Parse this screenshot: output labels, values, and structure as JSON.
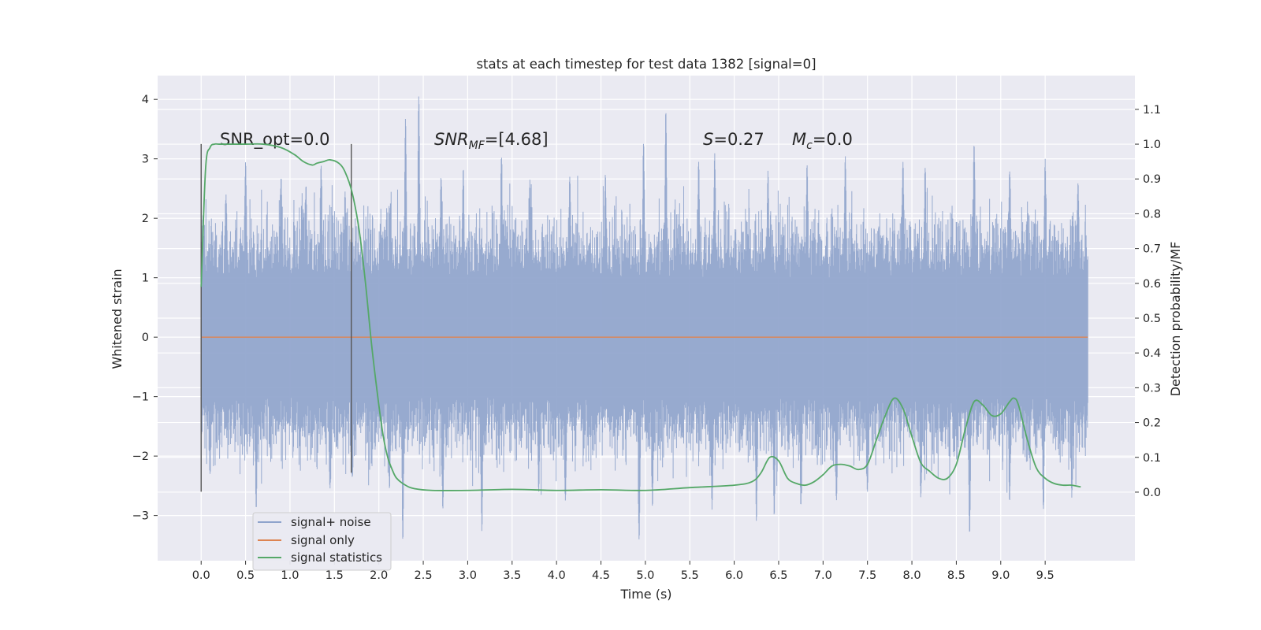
{
  "chart_data": {
    "type": "line",
    "title": "stats at each timestep for test data 1382 [signal=0]",
    "xlabel": "Time (s)",
    "ylabel_left": "Whitened strain",
    "ylabel_right": "Detection probability/MF",
    "xlim": [
      -0.49,
      10.51
    ],
    "ylim_left": [
      -3.76,
      4.4
    ],
    "ylim_right": [
      -0.197,
      1.197
    ],
    "x_ticks": [
      "0.0",
      "0.5",
      "1.0",
      "1.5",
      "2.0",
      "2.5",
      "3.0",
      "3.5",
      "4.0",
      "4.5",
      "5.0",
      "5.5",
      "6.0",
      "6.5",
      "7.0",
      "7.5",
      "8.0",
      "8.5",
      "9.0",
      "9.5"
    ],
    "y_left_ticks": [
      "−3",
      "−2",
      "−1",
      "0",
      "1",
      "2",
      "3",
      "4"
    ],
    "y_right_ticks": [
      "0.0",
      "0.1",
      "0.2",
      "0.3",
      "0.4",
      "0.5",
      "0.6",
      "0.7",
      "0.8",
      "0.9",
      "1.0",
      "1.1"
    ],
    "grid": true,
    "legend_position": "lower-left",
    "annotations": {
      "snr_opt": "SNR_opt=0.0",
      "snr_mf_base": "SNR",
      "snr_mf_sub": "MF",
      "snr_mf_value": "=[4.68]",
      "s_base": "S",
      "s_value": "=0.27",
      "mc_base": "M",
      "mc_sub": "c",
      "mc_value": "=0.0"
    },
    "vertical_markers": [
      {
        "x": 0.0,
        "y_range": [
          -2.6,
          3.25
        ]
      },
      {
        "x": 1.69,
        "y_range": [
          -2.28,
          3.25
        ]
      }
    ],
    "series": [
      {
        "name": "signal+ noise",
        "axis": "left",
        "color": "#8fa4cc",
        "kind": "noise",
        "x_range": [
          0.0,
          9.98
        ],
        "core_band": [
          -1.0,
          1.0
        ],
        "positive_peaks": [
          [
            0.02,
            2.05
          ],
          [
            0.28,
            2.4
          ],
          [
            0.5,
            2.95
          ],
          [
            0.9,
            2.7
          ],
          [
            1.18,
            2.55
          ],
          [
            1.35,
            2.9
          ],
          [
            1.62,
            2.45
          ],
          [
            2.13,
            2.25
          ],
          [
            2.3,
            3.68
          ],
          [
            2.45,
            4.07
          ],
          [
            2.7,
            2.7
          ],
          [
            2.95,
            2.85
          ],
          [
            3.38,
            3.05
          ],
          [
            3.7,
            2.65
          ],
          [
            4.15,
            2.7
          ],
          [
            4.55,
            2.75
          ],
          [
            4.98,
            3.28
          ],
          [
            5.23,
            3.82
          ],
          [
            5.6,
            2.95
          ],
          [
            5.78,
            3.1
          ],
          [
            6.38,
            2.8
          ],
          [
            6.82,
            2.9
          ],
          [
            7.25,
            3.05
          ],
          [
            7.9,
            2.95
          ],
          [
            8.15,
            2.85
          ],
          [
            8.7,
            3.25
          ],
          [
            9.1,
            2.8
          ],
          [
            9.5,
            3.0
          ],
          [
            9.87,
            2.6
          ]
        ],
        "negative_peaks": [
          [
            0.1,
            -2.3
          ],
          [
            0.62,
            -2.9
          ],
          [
            1.45,
            -2.55
          ],
          [
            1.7,
            -2.35
          ],
          [
            2.12,
            -2.55
          ],
          [
            2.27,
            -3.42
          ],
          [
            2.72,
            -2.9
          ],
          [
            3.16,
            -3.27
          ],
          [
            3.8,
            -2.6
          ],
          [
            4.1,
            -2.75
          ],
          [
            4.93,
            -3.42
          ],
          [
            5.08,
            -2.85
          ],
          [
            5.75,
            -2.9
          ],
          [
            6.25,
            -3.1
          ],
          [
            6.45,
            -3.0
          ],
          [
            6.75,
            -2.85
          ],
          [
            7.15,
            -2.75
          ],
          [
            7.5,
            -2.6
          ],
          [
            8.1,
            -2.7
          ],
          [
            8.65,
            -3.32
          ],
          [
            9.1,
            -2.75
          ],
          [
            9.48,
            -2.9
          ],
          [
            9.8,
            -2.7
          ]
        ]
      },
      {
        "name": "signal only",
        "axis": "left",
        "color": "#dd8452",
        "x": [
          0.0,
          9.98
        ],
        "y": [
          0.0,
          0.0
        ]
      },
      {
        "name": "signal statistics",
        "axis": "right",
        "color": "#55a868",
        "x": [
          0.0,
          0.05,
          0.1,
          0.15,
          0.2,
          0.3,
          0.5,
          0.7,
          0.9,
          1.05,
          1.15,
          1.25,
          1.3,
          1.38,
          1.45,
          1.55,
          1.62,
          1.7,
          1.78,
          1.85,
          1.92,
          2.0,
          2.05,
          2.1,
          2.15,
          2.2,
          2.3,
          2.4,
          2.6,
          3.0,
          3.5,
          4.0,
          4.5,
          5.0,
          5.5,
          6.0,
          6.2,
          6.3,
          6.4,
          6.5,
          6.6,
          6.7,
          6.8,
          6.9,
          7.0,
          7.1,
          7.2,
          7.3,
          7.4,
          7.5,
          7.6,
          7.7,
          7.8,
          7.9,
          8.0,
          8.1,
          8.2,
          8.3,
          8.4,
          8.5,
          8.6,
          8.7,
          8.8,
          8.9,
          9.0,
          9.1,
          9.15,
          9.2,
          9.3,
          9.4,
          9.5,
          9.6,
          9.7,
          9.8,
          9.9
        ],
        "y": [
          0.59,
          0.93,
          0.99,
          1.0,
          1.0,
          1.0,
          1.0,
          1.0,
          0.99,
          0.97,
          0.95,
          0.94,
          0.945,
          0.95,
          0.955,
          0.945,
          0.92,
          0.86,
          0.75,
          0.6,
          0.42,
          0.25,
          0.16,
          0.1,
          0.065,
          0.04,
          0.02,
          0.01,
          0.005,
          0.005,
          0.008,
          0.005,
          0.007,
          0.005,
          0.013,
          0.02,
          0.03,
          0.055,
          0.1,
          0.09,
          0.04,
          0.025,
          0.02,
          0.03,
          0.05,
          0.075,
          0.08,
          0.075,
          0.065,
          0.08,
          0.15,
          0.22,
          0.27,
          0.24,
          0.16,
          0.085,
          0.06,
          0.04,
          0.04,
          0.08,
          0.18,
          0.26,
          0.25,
          0.22,
          0.225,
          0.26,
          0.27,
          0.25,
          0.15,
          0.07,
          0.04,
          0.025,
          0.02,
          0.02,
          0.015
        ]
      }
    ]
  }
}
